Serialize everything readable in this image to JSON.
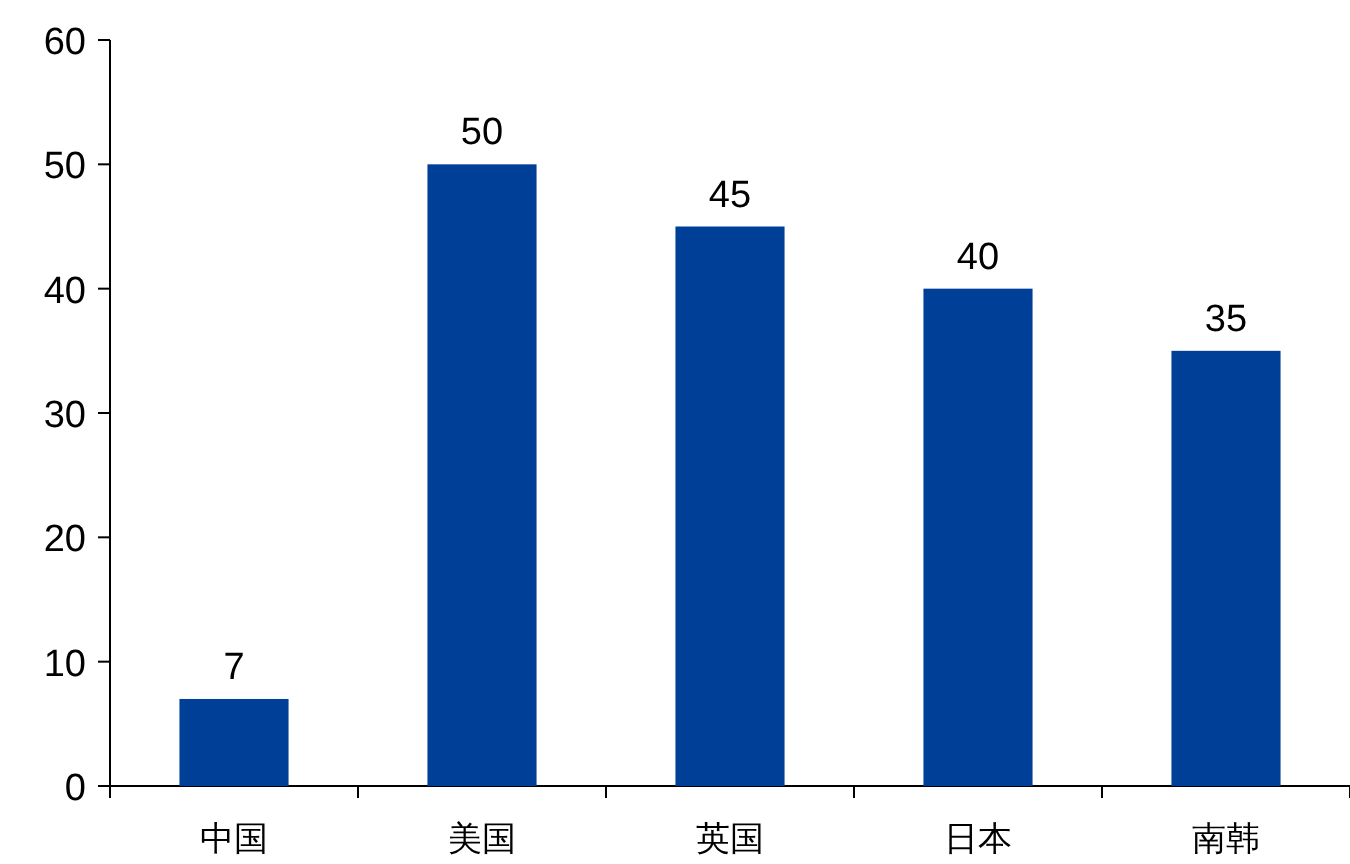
{
  "chart_data": {
    "type": "bar",
    "categories": [
      "中国",
      "美国",
      "英国",
      "日本",
      "南韩"
    ],
    "values": [
      7,
      50,
      45,
      40,
      35
    ],
    "color": "#003f98",
    "ylim": [
      0,
      60
    ],
    "yticks": [
      0,
      10,
      20,
      30,
      40,
      50,
      60
    ],
    "data_labels": true,
    "grid": false
  }
}
